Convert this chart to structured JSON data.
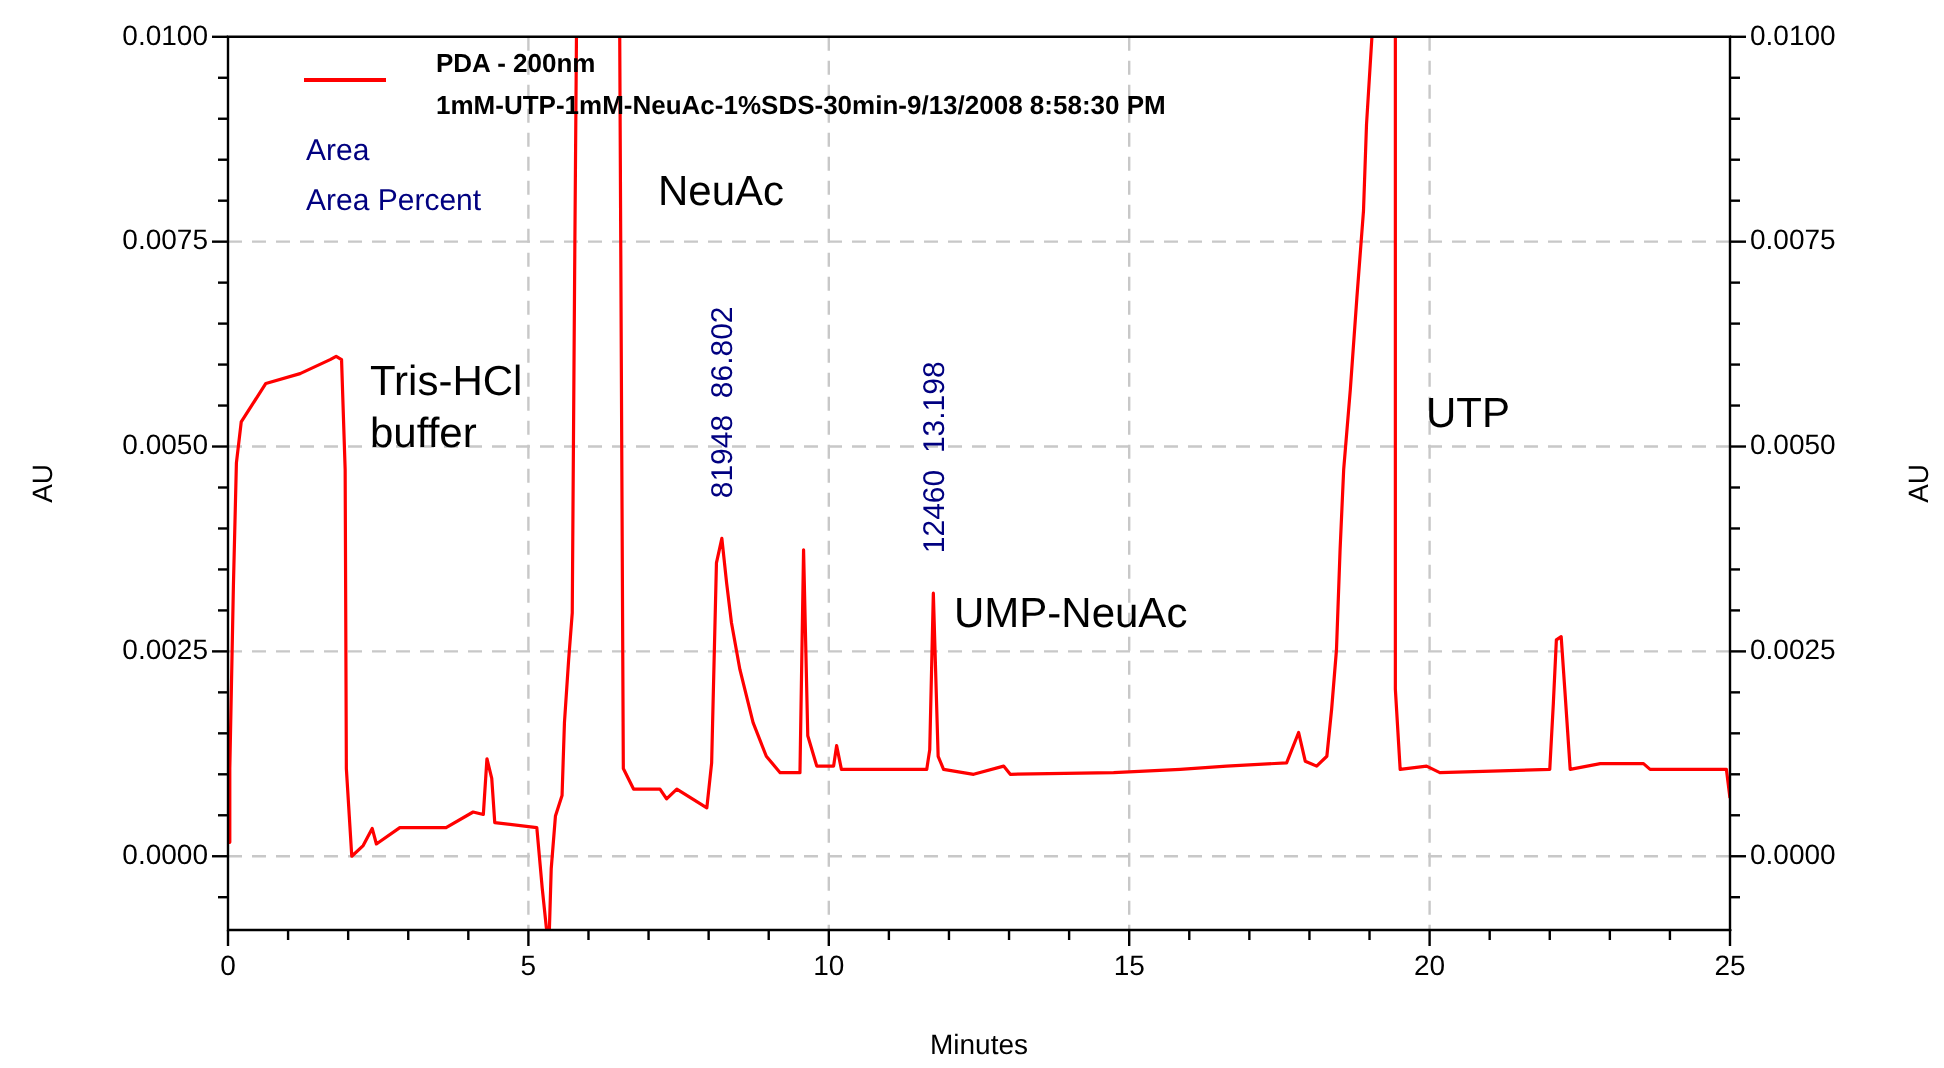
{
  "chart_data": {
    "type": "line",
    "xlabel": "Minutes",
    "ylabel": "AU",
    "y2label": "AU",
    "legend": "top left",
    "grid": true,
    "line_style": "solid",
    "marker": "none",
    "xlim": [
      0,
      25
    ],
    "ylim": [
      -0.0009,
      0.01
    ],
    "y2lim": [
      -0.0009,
      0.01
    ],
    "xticks": [
      0,
      {
        "value": 1,
        "label": null
      },
      {
        "value": 2,
        "label": null
      },
      {
        "value": 3,
        "label": null
      },
      {
        "value": 4,
        "label": null
      },
      5,
      {
        "value": 6,
        "label": null
      },
      {
        "value": 7,
        "label": null
      },
      {
        "value": 8,
        "label": null
      },
      {
        "value": 9,
        "label": null
      },
      10,
      {
        "value": 11,
        "label": null
      },
      {
        "value": 12,
        "label": null
      },
      {
        "value": 13,
        "label": null
      },
      {
        "value": 14,
        "label": null
      },
      15,
      {
        "value": 16,
        "label": null
      },
      {
        "value": 17,
        "label": null
      },
      {
        "value": 18,
        "label": null
      },
      {
        "value": 19,
        "label": null
      },
      20,
      {
        "value": 21,
        "label": null
      },
      {
        "value": 22,
        "label": null
      },
      {
        "value": 23,
        "label": null
      },
      {
        "value": 24,
        "label": null
      },
      25
    ],
    "yticks": [
      {
        "value": -0.0005,
        "label": null
      },
      {
        "value": 0,
        "label": "0.0000"
      },
      {
        "value": 0.0005,
        "label": null
      },
      {
        "value": 0.001,
        "label": null
      },
      {
        "value": 0.0015,
        "label": null
      },
      {
        "value": 0.002,
        "label": null
      },
      {
        "value": 0.0025,
        "label": "0.0025"
      },
      {
        "value": 0.003,
        "label": null
      },
      {
        "value": 0.0035,
        "label": null
      },
      {
        "value": 0.004,
        "label": null
      },
      {
        "value": 0.0045,
        "label": null
      },
      {
        "value": 0.005,
        "label": "0.0050"
      },
      {
        "value": 0.0055,
        "label": null
      },
      {
        "value": 0.006,
        "label": null
      },
      {
        "value": 0.0065,
        "label": null
      },
      {
        "value": 0.007,
        "label": null
      },
      {
        "value": 0.0075,
        "label": "0.0075"
      },
      {
        "value": 0.008,
        "label": null
      },
      {
        "value": 0.0085,
        "label": null
      },
      {
        "value": 0.009,
        "label": null
      },
      {
        "value": 0.0095,
        "label": null
      },
      {
        "value": 0.01,
        "label": "0.0100"
      }
    ],
    "y2ticks": [
      {
        "value": -0.0005,
        "label": null
      },
      {
        "value": 0,
        "label": "0.0000"
      },
      {
        "value": 0.0005,
        "label": null
      },
      {
        "value": 0.001,
        "label": null
      },
      {
        "value": 0.0015,
        "label": null
      },
      {
        "value": 0.002,
        "label": null
      },
      {
        "value": 0.0025,
        "label": "0.0025"
      },
      {
        "value": 0.003,
        "label": null
      },
      {
        "value": 0.0035,
        "label": null
      },
      {
        "value": 0.004,
        "label": null
      },
      {
        "value": 0.0045,
        "label": null
      },
      {
        "value": 0.005,
        "label": "0.0050"
      },
      {
        "value": 0.0055,
        "label": null
      },
      {
        "value": 0.006,
        "label": null
      },
      {
        "value": 0.0065,
        "label": null
      },
      {
        "value": 0.007,
        "label": null
      },
      {
        "value": 0.0075,
        "label": "0.0075"
      },
      {
        "value": 0.008,
        "label": null
      },
      {
        "value": 0.0085,
        "label": null
      },
      {
        "value": 0.009,
        "label": null
      },
      {
        "value": 0.0095,
        "label": null
      },
      {
        "value": 0.01,
        "label": "0.0100"
      }
    ],
    "annotations": [
      "1mM-UTP-1mM-NeuAc-1%SDS-30min-9/13/2008 8:58:30 PM",
      "Area",
      "Area Percent",
      "Tris-HCl\nbuffer",
      "NeuAc",
      "UMP-NeuAc",
      "UTP",
      {
        "text": "81948  86.802",
        "x": 8.22,
        "y": 0.00388
      },
      {
        "text": "12460  13.198",
        "x": 11.74,
        "y": 0.00321
      }
    ],
    "series": [
      {
        "name": "PDA - 200nm",
        "color": "#ff0000",
        "x": [
          0,
          0.03,
          0.09,
          0.14,
          0.22,
          0.63,
          1.2,
          1.7,
          1.8,
          1.89,
          1.95,
          1.97,
          2.06,
          2.25,
          2.4,
          2.47,
          2.86,
          3.63,
          4.08,
          4.25,
          4.31,
          4.39,
          4.44,
          5.14,
          5.23,
          5.3,
          5.35,
          5.38,
          5.45,
          5.56,
          5.6,
          5.67,
          5.73,
          5.77,
          5.8,
          6.2,
          6.52,
          6.58,
          6.75,
          7.19,
          7.3,
          7.47,
          7.97,
          8.05,
          8.13,
          8.22,
          8.3,
          8.38,
          8.52,
          8.74,
          8.96,
          9.19,
          9.52,
          9.58,
          9.65,
          9.8,
          10.08,
          10.13,
          10.21,
          11.63,
          11.68,
          11.74,
          11.82,
          11.91,
          12.41,
          12.91,
          13.02,
          14.74,
          15.85,
          16.62,
          17.62,
          17.82,
          17.93,
          18.12,
          18.29,
          18.37,
          18.45,
          18.51,
          18.57,
          18.68,
          18.79,
          18.9,
          18.95,
          19.04,
          19.2,
          19.43,
          19.43,
          19.51,
          19.95,
          20.17,
          22.0,
          22.06,
          22.11,
          22.19,
          22.25,
          22.34,
          22.84,
          23.56,
          23.67,
          24.94,
          25.0
        ],
        "values": [
          0.00017,
          0.00107,
          0.0033,
          0.0048,
          0.0053,
          0.00577,
          0.00589,
          0.00606,
          0.0061,
          0.00606,
          0.00472,
          0.00107,
          0,
          0.00013,
          0.00034,
          0.00015,
          0.00035,
          0.00035,
          0.00054,
          0.00051,
          0.00119,
          0.00095,
          0.00041,
          0.00035,
          -0.00039,
          -0.00088,
          -0.00088,
          -0.00015,
          0.00049,
          0.00074,
          0.00163,
          0.0024,
          0.00297,
          0.00715,
          0.01,
          null,
          0.01,
          0.00107,
          0.00082,
          0.00082,
          0.0007,
          0.00082,
          0.00059,
          0.00114,
          0.00358,
          0.00388,
          0.00333,
          0.00285,
          0.00228,
          0.00163,
          0.00122,
          0.00102,
          0.00102,
          0.00374,
          0.00147,
          0.0011,
          0.0011,
          0.00135,
          0.00106,
          0.00106,
          0.0013,
          0.00321,
          0.00122,
          0.00106,
          0.001,
          0.0011,
          0.001,
          0.00102,
          0.00106,
          0.0011,
          0.00114,
          0.00151,
          0.00116,
          0.0011,
          0.00122,
          0.0018,
          0.00252,
          0.00374,
          0.00472,
          0.00569,
          0.00682,
          0.00788,
          0.00893,
          0.01,
          null,
          0.01,
          0.00204,
          0.00106,
          0.0011,
          0.00102,
          0.00106,
          0.00187,
          0.00264,
          0.00268,
          0.00204,
          0.00106,
          0.00113,
          0.00113,
          0.00106,
          0.00106,
          0.00071
        ]
      }
    ]
  }
}
